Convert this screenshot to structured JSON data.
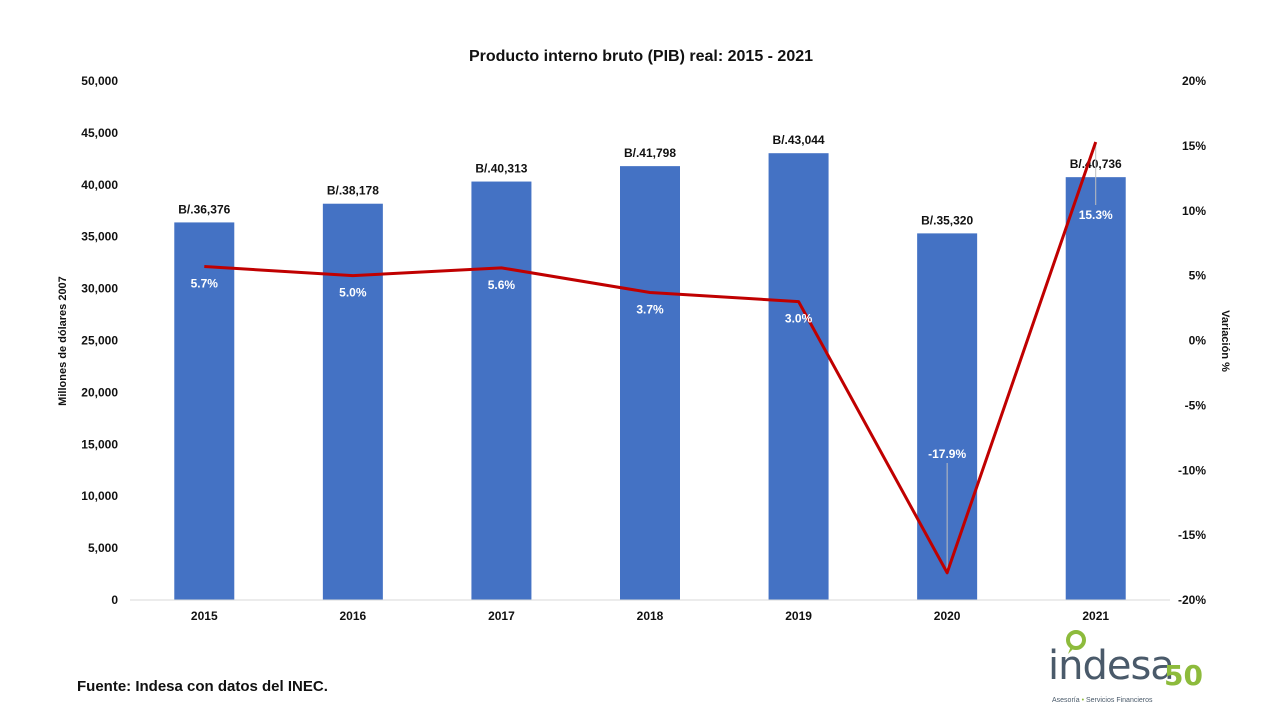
{
  "chart_data": {
    "type": "bar",
    "title": "Producto interno bruto (PIB) real: 2015 - 2021",
    "categories": [
      "2015",
      "2016",
      "2017",
      "2018",
      "2019",
      "2020",
      "2021"
    ],
    "series": [
      {
        "type": "bar",
        "axis": "left",
        "values": [
          36376,
          38178,
          40313,
          41798,
          43044,
          35320,
          40736
        ],
        "labels": [
          "B/.36,376",
          "B/.38,178",
          "B/.40,313",
          "B/.41,798",
          "B/.43,044",
          "B/.35,320",
          "B/.40,736"
        ],
        "color": "#4472c4"
      },
      {
        "type": "line",
        "axis": "right",
        "values": [
          5.7,
          5.0,
          5.6,
          3.7,
          3.0,
          -17.9,
          15.3
        ],
        "labels": [
          "5.7%",
          "5.0%",
          "5.6%",
          "3.7%",
          "3.0%",
          "-17.9%",
          "15.3%"
        ],
        "color": "#c00000"
      }
    ],
    "ylabel": "Millones de dólares 2007",
    "ylabel_right": "Variación %",
    "ylim": [
      0,
      50000
    ],
    "ylim_right": [
      -20,
      20
    ],
    "yticks": [
      "0",
      "5,000",
      "10,000",
      "15,000",
      "20,000",
      "25,000",
      "30,000",
      "35,000",
      "40,000",
      "45,000",
      "50,000"
    ],
    "yticks_right": [
      "-20%",
      "-15%",
      "-10%",
      "-5%",
      "0%",
      "5%",
      "10%",
      "15%",
      "20%"
    ],
    "grid": false,
    "legend": "none"
  },
  "footer": {
    "source": "Fuente: Indesa con datos del INEC."
  },
  "logo": {
    "word": "indesa",
    "number": "50",
    "tagline_left": "Asesoría",
    "tagline_right": "Servicios Financieros",
    "colors": {
      "text": "#4a5a6a",
      "accent": "#8dbb3c"
    }
  }
}
